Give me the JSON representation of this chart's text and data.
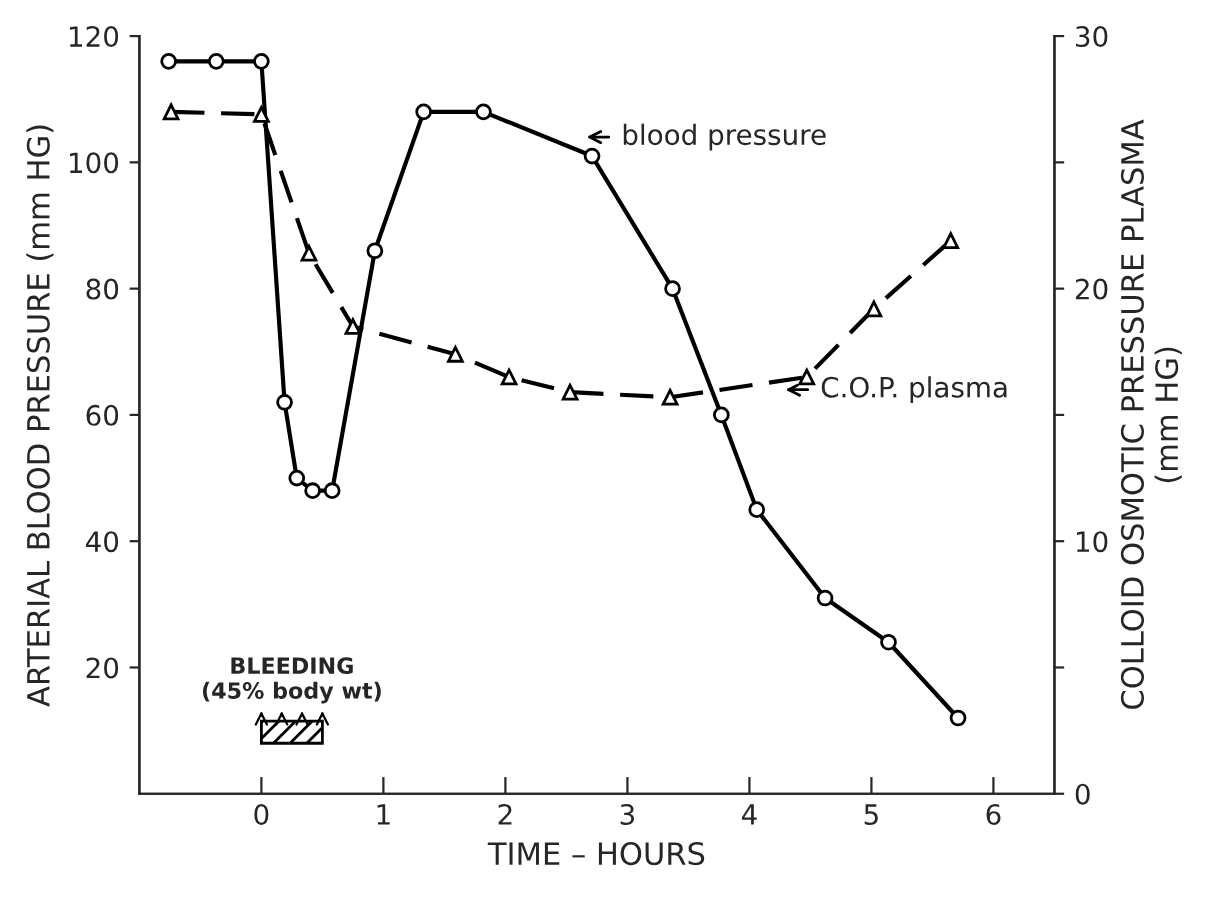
{
  "chart_data": {
    "type": "line",
    "xlabel": "TIME – HOURS",
    "ylabel": "ARTERIAL BLOOD PRESSURE (mm HG)",
    "y2label": "COLLOID OSMOTIC PRESSURE PLASMA\n(mm HG)",
    "xlim": [
      -1,
      6.5
    ],
    "xticks": [
      0,
      1,
      2,
      3,
      4,
      5,
      6
    ],
    "ylim": [
      0,
      120
    ],
    "yticks": [
      20,
      40,
      60,
      80,
      100,
      120
    ],
    "y2lim": [
      0,
      30
    ],
    "y2ticks": [
      0,
      {
        "value": 5,
        "label": null
      },
      10,
      {
        "value": 15,
        "label": null
      },
      20,
      {
        "value": 25,
        "label": null
      },
      30
    ],
    "grid": false,
    "legend": "right",
    "series": [
      {
        "name": "blood pressure",
        "color": "#000000",
        "marker": "circle",
        "line_style": "solid",
        "x": [
          -0.76,
          -0.37,
          0,
          0.19,
          0.29,
          0.42,
          0.58,
          0.93,
          1.33,
          1.82,
          2.71,
          3.37,
          3.77,
          4.06,
          4.62,
          5.14,
          5.71
        ],
        "values": [
          116,
          116,
          116,
          62,
          50,
          48,
          48,
          86,
          108,
          108,
          101,
          80,
          60,
          45,
          31,
          24,
          12
        ]
      },
      {
        "name": "C.O.P. plasma",
        "color": "#000000",
        "marker": "triangle",
        "line_style": "dashed",
        "axis": "y2",
        "x": [
          -0.74,
          0,
          0.39,
          0.75,
          1.59,
          2.03,
          2.53,
          3.35,
          4.47,
          5.02,
          5.65
        ],
        "values": [
          27,
          26.9,
          21.4,
          18.5,
          17.4,
          16.5,
          15.9,
          15.7,
          16.5,
          19.2,
          21.9
        ]
      }
    ],
    "annotations": [
      "BLEEDING\n(45% body wt)"
    ]
  }
}
